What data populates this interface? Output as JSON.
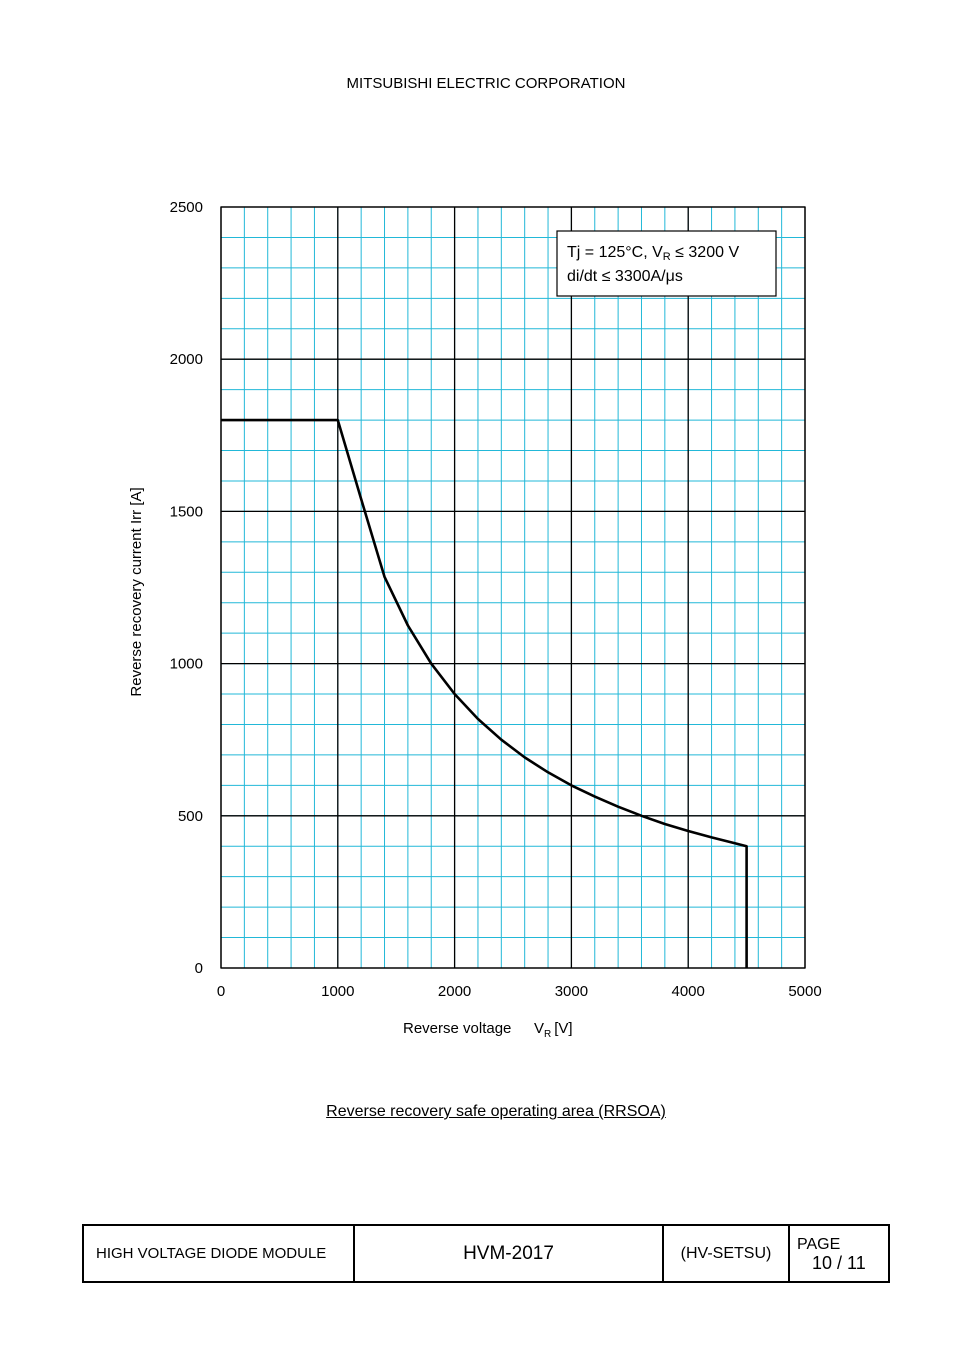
{
  "header": {
    "company": "MITSUBISHI ELECTRIC CORPORATION"
  },
  "chart_data": {
    "type": "line",
    "title": "",
    "xlabel": "Reverse voltage",
    "xlabel_symbol": "V",
    "xlabel_subscript": "R",
    "xlabel_unit": "[V]",
    "ylabel": "Reverse recovery current    Irr [A]",
    "xlim": [
      0,
      5000
    ],
    "ylim": [
      0,
      2500
    ],
    "x_ticks": [
      0,
      1000,
      2000,
      3000,
      4000,
      5000
    ],
    "y_ticks": [
      0,
      500,
      1000,
      1500,
      2000,
      2500
    ],
    "minor_grid_step_x": 200,
    "minor_grid_step_y": 100,
    "grid": true,
    "grid_minor_color": "#22b8d8",
    "grid_major_color": "#000000",
    "series": [
      {
        "x": [
          0,
          1000,
          1200,
          1400,
          1600,
          1800,
          2000,
          2200,
          2400,
          2600,
          2800,
          3000,
          3200,
          3400,
          3600,
          3800,
          4000,
          4200,
          4400,
          4500,
          4500
        ],
        "y": [
          1800,
          1800,
          1540,
          1285,
          1125,
          1000,
          900,
          818,
          750,
          692,
          643,
          600,
          563,
          530,
          500,
          473,
          450,
          429,
          410,
          400,
          0
        ],
        "color": "#000000"
      }
    ],
    "annotation": {
      "line1_prefix": "Tj = 125°C, V",
      "line1_sub": "R",
      "line1_suffix": " ≤ 3200 V",
      "line2": "di/dt ≤ 3300A/μs",
      "placement": "top-right"
    }
  },
  "caption": "Reverse recovery safe operating area (RRSOA)",
  "footer": {
    "product": "HIGH VOLTAGE DIODE MODULE",
    "model": "HVM-2017",
    "code": "(HV-SETSU)",
    "page_label": "PAGE",
    "page_number": "10 / 11"
  }
}
